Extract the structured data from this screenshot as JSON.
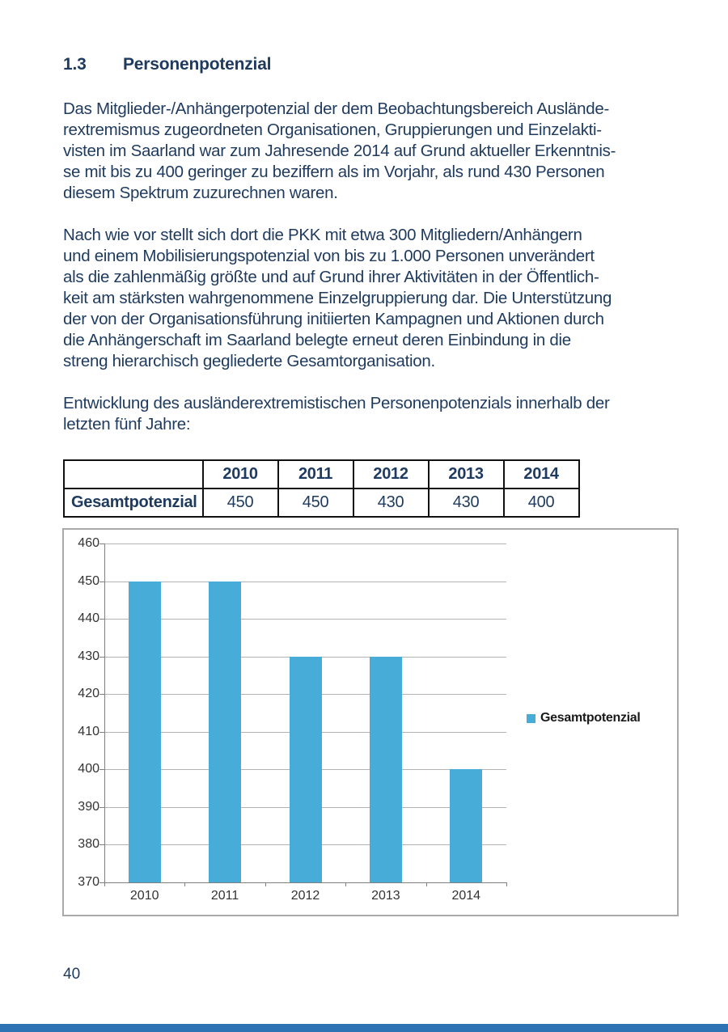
{
  "page": {
    "heading": {
      "number": "1.3",
      "title": "Personenpotenzial"
    },
    "paragraphs": [
      {
        "lines": [
          "Das Mitglieder-/Anhängerpotenzial der dem Beobachtungsbereich Auslände-",
          "rextremismus zugeordneten Organisationen, Gruppierungen und Einzelakti-",
          "visten im Saarland war zum Jahresende 2014 auf Grund aktueller Erkenntnis-",
          "se mit bis zu 400 geringer zu beziffern als im Vorjahr, als rund 430 Personen",
          "diesem Spektrum zuzurechnen waren."
        ]
      },
      {
        "lines": [
          "Nach wie vor stellt sich dort die PKK mit etwa 300 Mitgliedern/Anhängern",
          "und einem Mobilisierungspotenzial von bis zu 1.000 Personen unverändert",
          "als die zahlenmäßig größte und auf Grund ihrer Aktivitäten in der Öffentlich-",
          "keit am stärksten wahrgenommene Einzelgruppierung dar. Die Unterstützung",
          "der von der Organisationsführung initiierten Kampagnen und Aktionen durch",
          "die Anhängerschaft im Saarland belegte erneut deren Einbindung in die",
          "streng hierarchisch gegliederte Gesamtorganisation."
        ]
      },
      {
        "lines": [
          "Entwicklung des ausländerextremistischen Personenpotenzials innerhalb der",
          "letzten fünf Jahre:"
        ]
      }
    ],
    "page_number": "40"
  },
  "table": {
    "header": [
      "",
      "2010",
      "2011",
      "2012",
      "2013",
      "2014"
    ],
    "rows": [
      {
        "label": "Gesamtpotenzial",
        "values": [
          "450",
          "450",
          "430",
          "430",
          "400"
        ]
      }
    ]
  },
  "chart_data": {
    "type": "bar",
    "categories": [
      "2010",
      "2011",
      "2012",
      "2013",
      "2014"
    ],
    "series": [
      {
        "name": "Gesamtpotenzial",
        "values": [
          450,
          450,
          430,
          430,
          400
        ]
      }
    ],
    "title": "",
    "xlabel": "",
    "ylabel": "",
    "ylim": [
      370,
      460
    ],
    "ytick_step": 10,
    "grid": true,
    "legend_position": "right",
    "legend_label": "Gesamtpotenzial",
    "bar_color": "#48acd9"
  },
  "colors": {
    "body_text": "#1e3a5f",
    "bar": "#48acd9",
    "footer_bar": "#2e74b5",
    "chart_border": "#a9a9a9",
    "gridline": "#b3b3b3"
  }
}
